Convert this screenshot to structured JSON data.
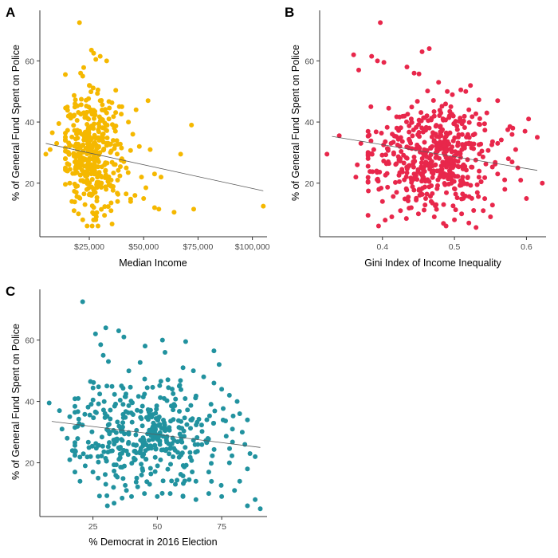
{
  "chart_data": [
    {
      "panel": "A",
      "type": "scatter",
      "title": "",
      "xlabel": "Median Income",
      "ylabel": "% of General Fund Spent on Police",
      "xlim": [
        3000,
        106000
      ],
      "ylim": [
        3,
        76
      ],
      "xticks": [
        25000,
        50000,
        75000,
        100000
      ],
      "xtick_labels": [
        "$25,000",
        "$50,000",
        "$75,000",
        "$100,000"
      ],
      "yticks": [
        20,
        40,
        60
      ],
      "ytick_labels": [
        "20",
        "40",
        "60"
      ],
      "color": "#F5B800",
      "grid": false,
      "trend": {
        "x": [
          5000,
          105000
        ],
        "y": [
          33.0,
          17.5
        ]
      },
      "cluster": {
        "cx": 26000,
        "sx": 6500,
        "cy": 31,
        "sy": 9,
        "n": 370,
        "xmin": 14000,
        "xmax": 44000
      },
      "points": [
        [
          20500,
          72.5
        ],
        [
          26000,
          63.5
        ],
        [
          27000,
          62.5
        ],
        [
          30000,
          61.5
        ],
        [
          33000,
          60
        ],
        [
          28000,
          60.5
        ],
        [
          22000,
          55
        ],
        [
          21000,
          56
        ],
        [
          25000,
          52
        ],
        [
          30000,
          47
        ],
        [
          52000,
          47
        ],
        [
          46500,
          44
        ],
        [
          40000,
          45
        ],
        [
          11000,
          39.5
        ],
        [
          8000,
          36.5
        ],
        [
          7000,
          31
        ],
        [
          5000,
          29.5
        ],
        [
          10000,
          33
        ],
        [
          43000,
          40
        ],
        [
          45000,
          36
        ],
        [
          48000,
          32
        ],
        [
          53000,
          31
        ],
        [
          58000,
          22
        ],
        [
          55000,
          23
        ],
        [
          67000,
          29.5
        ],
        [
          72000,
          39
        ],
        [
          49000,
          22
        ],
        [
          51000,
          18.5
        ],
        [
          46000,
          16
        ],
        [
          44000,
          14
        ],
        [
          50000,
          15
        ],
        [
          55000,
          12
        ],
        [
          57000,
          11.5
        ],
        [
          64000,
          10.5
        ],
        [
          73000,
          11.5
        ],
        [
          105000,
          12.5
        ],
        [
          38000,
          14
        ],
        [
          35000,
          11
        ],
        [
          32000,
          9.5
        ],
        [
          28000,
          8
        ],
        [
          27000,
          10
        ],
        [
          24000,
          6
        ],
        [
          22000,
          8
        ],
        [
          20000,
          10
        ],
        [
          18000,
          11
        ],
        [
          17000,
          14
        ],
        [
          19000,
          17
        ],
        [
          16000,
          20
        ],
        [
          15000,
          24
        ],
        [
          14000,
          28
        ],
        [
          35000,
          19
        ],
        [
          38000,
          21
        ],
        [
          42000,
          25
        ],
        [
          40000,
          28
        ],
        [
          36000,
          34
        ],
        [
          37000,
          37
        ],
        [
          34000,
          41
        ],
        [
          33000,
          43
        ],
        [
          32000,
          26
        ],
        [
          29000,
          19
        ],
        [
          26000,
          16
        ],
        [
          23000,
          13
        ]
      ]
    },
    {
      "panel": "B",
      "type": "scatter",
      "title": "",
      "xlabel": "Gini Index of Income Inequality",
      "ylabel": "% of General Fund Spent on Police",
      "xlim": [
        0.315,
        0.625
      ],
      "ylim": [
        3,
        76
      ],
      "xticks": [
        0.4,
        0.5,
        0.6
      ],
      "xtick_labels": [
        "0.4",
        "0.5",
        "0.6"
      ],
      "yticks": [
        20,
        40,
        60
      ],
      "ytick_labels": [
        "20",
        "40",
        "60"
      ],
      "color": "#E8274B",
      "grid": false,
      "trend": {
        "x": [
          0.33,
          0.615
        ],
        "y": [
          35.3,
          24.2
        ]
      },
      "cluster": {
        "cx": 0.47,
        "sx": 0.042,
        "cy": 29,
        "sy": 8.5,
        "n": 480,
        "xmin": 0.38,
        "xmax": 0.58
      },
      "points": [
        [
          0.397,
          72.5
        ],
        [
          0.455,
          63
        ],
        [
          0.465,
          64
        ],
        [
          0.36,
          62
        ],
        [
          0.385,
          61.5
        ],
        [
          0.393,
          60
        ],
        [
          0.402,
          59.5
        ],
        [
          0.367,
          57
        ],
        [
          0.434,
          58
        ],
        [
          0.444,
          56
        ],
        [
          0.478,
          53
        ],
        [
          0.49,
          50
        ],
        [
          0.34,
          35.5
        ],
        [
          0.323,
          29.5
        ],
        [
          0.363,
          22
        ],
        [
          0.365,
          26
        ],
        [
          0.37,
          33
        ],
        [
          0.38,
          29
        ],
        [
          0.384,
          45
        ],
        [
          0.388,
          31
        ],
        [
          0.603,
          41
        ],
        [
          0.598,
          37
        ],
        [
          0.581,
          38
        ],
        [
          0.615,
          35
        ],
        [
          0.622,
          20
        ],
        [
          0.6,
          15
        ],
        [
          0.592,
          21
        ],
        [
          0.588,
          25
        ],
        [
          0.57,
          18
        ],
        [
          0.56,
          23
        ],
        [
          0.55,
          9
        ],
        [
          0.54,
          11
        ],
        [
          0.53,
          5.5
        ],
        [
          0.52,
          7
        ],
        [
          0.51,
          10
        ],
        [
          0.5,
          8
        ],
        [
          0.485,
          13
        ],
        [
          0.472,
          9
        ],
        [
          0.46,
          15
        ],
        [
          0.45,
          10
        ],
        [
          0.44,
          12
        ],
        [
          0.425,
          11
        ],
        [
          0.413,
          9
        ],
        [
          0.4,
          14
        ],
        [
          0.395,
          18
        ],
        [
          0.392,
          24
        ],
        [
          0.408,
          27
        ],
        [
          0.56,
          47
        ],
        [
          0.575,
          28
        ],
        [
          0.585,
          31
        ],
        [
          0.56,
          33
        ],
        [
          0.545,
          43
        ],
        [
          0.52,
          44
        ],
        [
          0.51,
          40
        ],
        [
          0.495,
          45
        ],
        [
          0.44,
          41
        ],
        [
          0.42,
          38
        ],
        [
          0.412,
          33
        ]
      ]
    },
    {
      "panel": "C",
      "type": "scatter",
      "title": "",
      "xlabel": "% Democrat in 2016 Election",
      "ylabel": "% of General Fund Spent on Police",
      "xlim": [
        5,
        92
      ],
      "ylim": [
        3,
        76
      ],
      "xticks": [
        25,
        50,
        75
      ],
      "xtick_labels": [
        "25",
        "50",
        "75"
      ],
      "yticks": [
        20,
        40,
        60
      ],
      "ytick_labels": [
        "20",
        "40",
        "60"
      ],
      "color": "#21929F",
      "grid": false,
      "trend": {
        "x": [
          9,
          90
        ],
        "y": [
          33.5,
          25.0
        ]
      },
      "cluster": {
        "cx": 46,
        "sx": 15,
        "cy": 29,
        "sy": 9,
        "n": 390,
        "xmin": 18,
        "xmax": 80
      },
      "points": [
        [
          21,
          72.5
        ],
        [
          30,
          64
        ],
        [
          26,
          62
        ],
        [
          35,
          63
        ],
        [
          37,
          61
        ],
        [
          52,
          60
        ],
        [
          61,
          59.5
        ],
        [
          28,
          58.5
        ],
        [
          29,
          55
        ],
        [
          53,
          56
        ],
        [
          72,
          56.5
        ],
        [
          31,
          53
        ],
        [
          60,
          51
        ],
        [
          64,
          50
        ],
        [
          68,
          48
        ],
        [
          72,
          46
        ],
        [
          75,
          44
        ],
        [
          78,
          42
        ],
        [
          8,
          39.5
        ],
        [
          12,
          37
        ],
        [
          16,
          35
        ],
        [
          13,
          31
        ],
        [
          15,
          28
        ],
        [
          17,
          24
        ],
        [
          16,
          21
        ],
        [
          18,
          17
        ],
        [
          20,
          14
        ],
        [
          81,
          40
        ],
        [
          82,
          36
        ],
        [
          85,
          34
        ],
        [
          83,
          30
        ],
        [
          84,
          26
        ],
        [
          86,
          23
        ],
        [
          85,
          18
        ],
        [
          88,
          22
        ],
        [
          82,
          14
        ],
        [
          80,
          11
        ],
        [
          88,
          8
        ],
        [
          85,
          6
        ],
        [
          90,
          5
        ],
        [
          75,
          9
        ],
        [
          70,
          10
        ],
        [
          65,
          8
        ],
        [
          60,
          9
        ],
        [
          55,
          10
        ],
        [
          50,
          9
        ],
        [
          45,
          10
        ],
        [
          40,
          9
        ],
        [
          38,
          11
        ],
        [
          33,
          12
        ],
        [
          30,
          13
        ],
        [
          27,
          15
        ],
        [
          25,
          17
        ],
        [
          22,
          19
        ],
        [
          78,
          20
        ],
        [
          70,
          17
        ],
        [
          65,
          14
        ],
        [
          57,
          13
        ],
        [
          47,
          13
        ],
        [
          42,
          15
        ]
      ]
    }
  ]
}
